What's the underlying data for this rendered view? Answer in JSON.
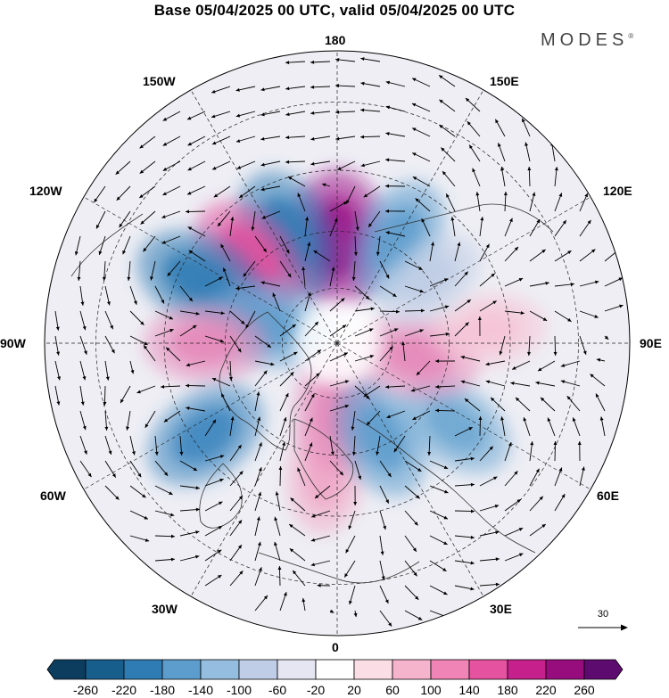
{
  "title": "Base 05/04/2025 00 UTC, valid 05/04/2025 00 UTC",
  "logo": {
    "text": "MODES",
    "mark": "®"
  },
  "map": {
    "projection": "north-polar-stereographic",
    "longitude_labels": {
      "top": "180",
      "top_left": "150W",
      "top_right": "150E",
      "left_upper": "120W",
      "right_upper": "120E",
      "left": "90W",
      "right": "90E",
      "left_lower": "60W",
      "right_lower": "60E",
      "bottom_left": "30W",
      "bottom_right": "30E",
      "bottom": "0"
    },
    "anomaly_centers": [
      {
        "lon": 180,
        "lat": 62,
        "value": 240,
        "color": "#a0168a"
      },
      {
        "lon": 205,
        "lat": 58,
        "value": -200,
        "color": "#2f7cb5"
      },
      {
        "lon": 225,
        "lat": 57,
        "value": 160,
        "color": "#e14f9e"
      },
      {
        "lon": 245,
        "lat": 50,
        "value": -180,
        "color": "#2f7cb5"
      },
      {
        "lon": 255,
        "lat": 70,
        "value": -140,
        "color": "#5d9dcd"
      },
      {
        "lon": 270,
        "lat": 55,
        "value": 120,
        "color": "#e58aba"
      },
      {
        "lon": 305,
        "lat": 48,
        "value": -160,
        "color": "#3f87c0"
      },
      {
        "lon": 355,
        "lat": 55,
        "value": 100,
        "color": "#f0a9c8"
      },
      {
        "lon": 358,
        "lat": 72,
        "value": 130,
        "color": "#e58aba"
      },
      {
        "lon": 25,
        "lat": 62,
        "value": -140,
        "color": "#5d9dcd"
      },
      {
        "lon": 55,
        "lat": 52,
        "value": -120,
        "color": "#6ea7d3"
      },
      {
        "lon": 80,
        "lat": 68,
        "value": 130,
        "color": "#e58aba"
      },
      {
        "lon": 95,
        "lat": 50,
        "value": 70,
        "color": "#f6c4d6"
      },
      {
        "lon": 150,
        "lat": 58,
        "value": -140,
        "color": "#5d9dcd"
      },
      {
        "lon": 125,
        "lat": 60,
        "value": -60,
        "color": "#c0cde6"
      }
    ],
    "reference_vector": {
      "value": "30"
    }
  },
  "colorbar": {
    "colors": [
      "#0c3c5e",
      "#185e8d",
      "#2f7cb5",
      "#5d9dcd",
      "#94bde0",
      "#c0cde6",
      "#e6e6f2",
      "#ffffff",
      "#fbdde5",
      "#f6b3cc",
      "#f084b6",
      "#e5529f",
      "#c5208c",
      "#980d7d",
      "#5d0b6f"
    ],
    "labels": [
      "-260",
      "-220",
      "-180",
      "-140",
      "-100",
      "-60",
      "-20",
      "20",
      "60",
      "100",
      "140",
      "180",
      "220",
      "260"
    ]
  }
}
